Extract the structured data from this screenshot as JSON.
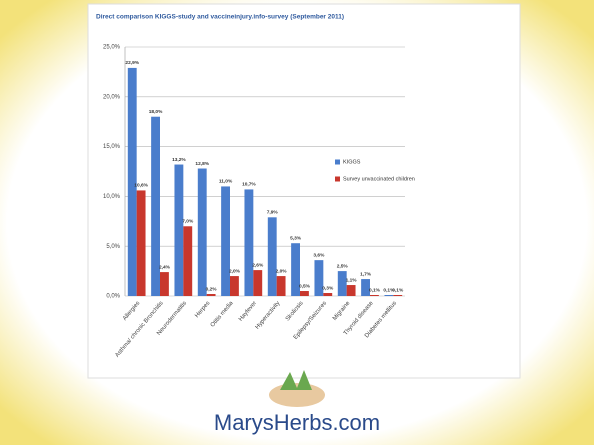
{
  "chart_data": {
    "type": "bar",
    "title": "Direct comparison KIGGS-study and vaccineinjury.info-survey (September 2011)",
    "categories": [
      "Allergies",
      "Asthma/ chronic Bronchitis",
      "Neurodermatitis",
      "Herpes",
      "Otitis media",
      "Hayfever",
      "Hyperactivity",
      "Skoliosis",
      "Epilepsy/Seizures",
      "Migraine",
      "Thyroid disease",
      "Diabetes mellitus"
    ],
    "series": [
      {
        "name": "KIGGS",
        "color": "#4a7dcc",
        "values": [
          22.9,
          18.0,
          13.2,
          12.8,
          11.0,
          10.7,
          7.9,
          5.3,
          3.6,
          2.5,
          1.7,
          0.1
        ],
        "value_labels": [
          "22,9%",
          "18,0%",
          "13,2%",
          "12,8%",
          "11,0%",
          "10,7%",
          "7,9%",
          "5,3%",
          "3,6%",
          "2,5%",
          "1,7%",
          "0,1%"
        ]
      },
      {
        "name": "Survey unvaccinated children",
        "color": "#c8372d",
        "values": [
          10.6,
          2.4,
          7.0,
          0.2,
          2.0,
          2.6,
          2.0,
          0.5,
          0.3,
          1.1,
          0.1,
          0.1
        ],
        "value_labels": [
          "10,6%",
          "2,4%",
          "7,0%",
          "0,2%",
          "2,0%",
          "2,6%",
          "2,0%",
          "0,5%",
          "0,3%",
          "1,1%",
          "0,1%",
          "0,1%"
        ]
      }
    ],
    "ylim": [
      0,
      25
    ],
    "yticks": [
      {
        "value": 0,
        "label": "0,0%"
      },
      {
        "value": 5,
        "label": "5,0%"
      },
      {
        "value": 10,
        "label": "10,0%"
      },
      {
        "value": 15,
        "label": "15,0%"
      },
      {
        "value": 20,
        "label": "20,0%"
      },
      {
        "value": 25,
        "label": "25,0%"
      }
    ],
    "grid": true
  },
  "footer": {
    "text": "MarysHerbs.com"
  }
}
